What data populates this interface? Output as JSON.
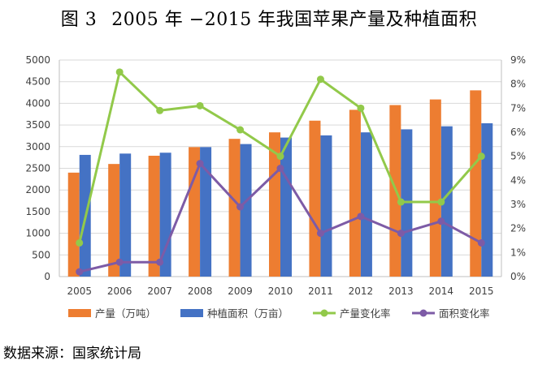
{
  "figure_label": "图 3",
  "title_text": "2005 年 −2015 年我国苹果产量及种植面积",
  "source": "数据来源：国家统计局",
  "colors": {
    "production": "#ED7D31",
    "area": "#4472C4",
    "production_rate": "#92C94A",
    "area_rate": "#7D5BA6",
    "axis": "#BFBFBF",
    "grid": "#D9D9D9"
  },
  "chart_data": {
    "type": "bar",
    "categories": [
      "2005",
      "2006",
      "2007",
      "2008",
      "2009",
      "2010",
      "2011",
      "2012",
      "2013",
      "2014",
      "2015"
    ],
    "series": [
      {
        "name": "产量（万吨）",
        "kind": "bar",
        "axis": "left",
        "values": [
          2400,
          2600,
          2790,
          2990,
          3180,
          3330,
          3600,
          3850,
          3960,
          4090,
          4300
        ]
      },
      {
        "name": "种植面积（万亩）",
        "kind": "bar",
        "axis": "left",
        "values": [
          2810,
          2840,
          2860,
          2990,
          3060,
          3210,
          3260,
          3330,
          3400,
          3470,
          3540
        ]
      },
      {
        "name": "产量变化率",
        "kind": "line",
        "axis": "right",
        "values": [
          1.4,
          8.5,
          6.9,
          7.1,
          6.1,
          5.0,
          8.2,
          7.0,
          3.1,
          3.1,
          5.0
        ]
      },
      {
        "name": "面积变化率",
        "kind": "line",
        "axis": "right",
        "values": [
          0.2,
          0.6,
          0.6,
          4.7,
          2.9,
          4.5,
          1.8,
          2.5,
          1.8,
          2.3,
          1.4
        ]
      }
    ],
    "y_left": {
      "min": 0,
      "max": 5000,
      "step": 500,
      "ticks": [
        "0",
        "500",
        "1000",
        "1500",
        "2000",
        "2500",
        "3000",
        "3500",
        "4000",
        "4500",
        "5000"
      ]
    },
    "y_right": {
      "min": 0,
      "max": 9,
      "step": 1,
      "ticks": [
        "0%",
        "1%",
        "2%",
        "3%",
        "4%",
        "5%",
        "6%",
        "7%",
        "8%",
        "9%"
      ]
    },
    "legend_position": "bottom",
    "grid": true
  }
}
